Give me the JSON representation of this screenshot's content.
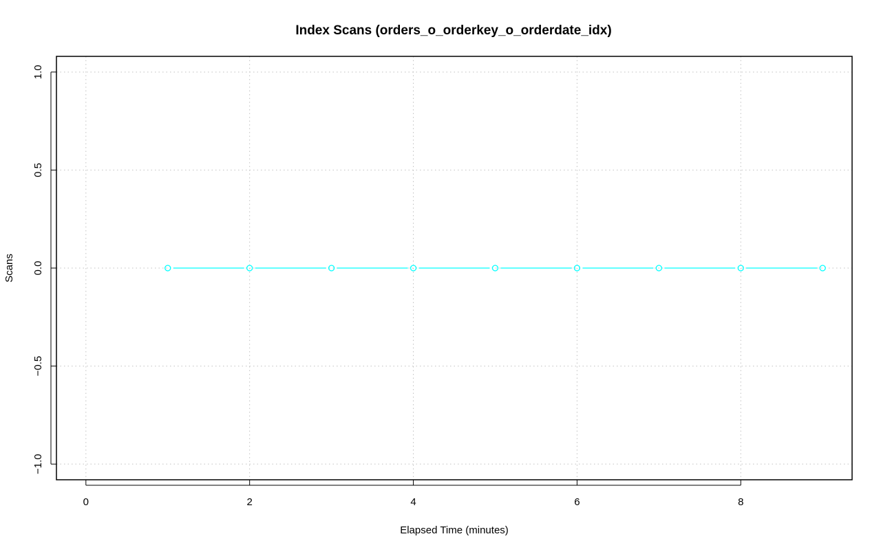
{
  "chart_data": {
    "type": "line",
    "title": "Index Scans (orders_o_orderkey_o_orderdate_idx)",
    "xlabel": "Elapsed Time (minutes)",
    "ylabel": "Scans",
    "xlim": [
      0,
      9
    ],
    "ylim": [
      -1,
      1
    ],
    "xticks": [
      0,
      2,
      4,
      6,
      8
    ],
    "yticks": [
      -1.0,
      -0.5,
      0.0,
      0.5,
      1.0
    ],
    "ytick_labels": [
      "−1.0",
      "−0.5",
      "0.0",
      "0.5",
      "1.0"
    ],
    "grid": true,
    "series": [
      {
        "x": [
          1,
          2,
          3,
          4,
          5,
          6,
          7,
          8,
          9
        ],
        "y": [
          0,
          0,
          0,
          0,
          0,
          0,
          0,
          0,
          0
        ],
        "color": "#00FFFF",
        "marker": "open-circle"
      }
    ]
  }
}
